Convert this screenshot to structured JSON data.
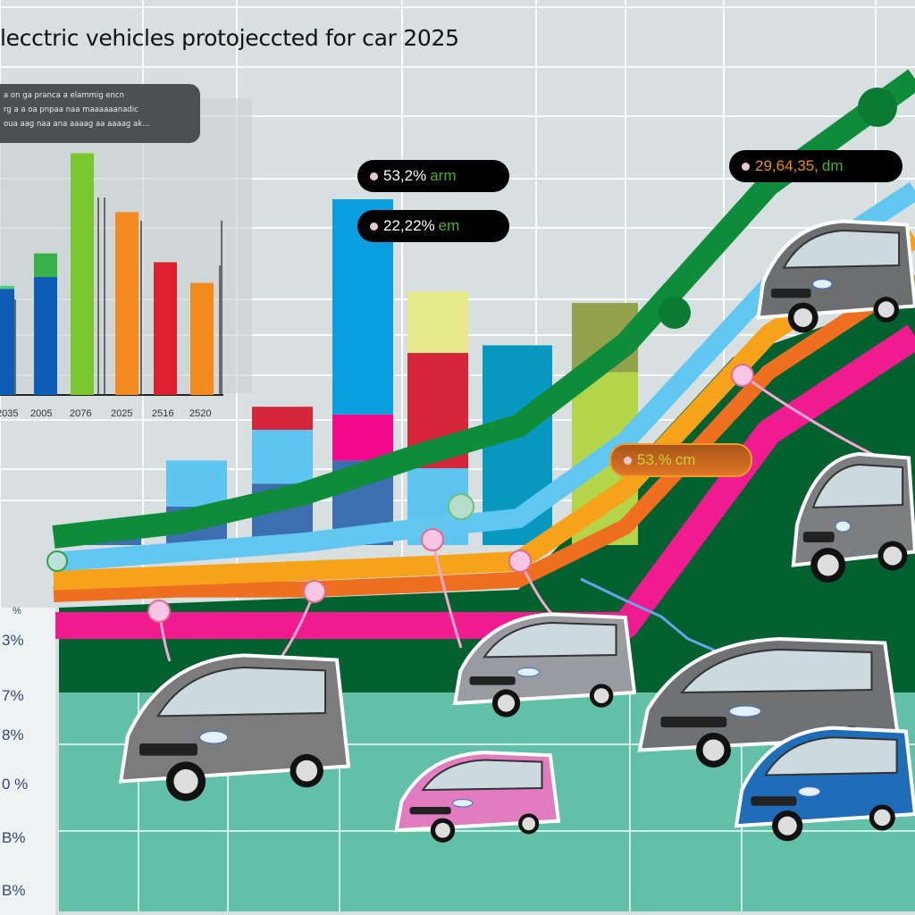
{
  "chart_data": {
    "type": "bar",
    "title": "lecctric vehicles  protojeccted for car  2025",
    "note_lines": [
      "a on ga pranca a elammig encn",
      "rg a a oa pnpaa naa maaaaaanadic",
      "oua aag naa ana aaaag aa aaaag ak..."
    ],
    "inset_chart": {
      "type": "bar",
      "categories": [
        "2035",
        "2005",
        "2076",
        "2025",
        "2516",
        "2520"
      ],
      "series": [
        {
          "name": "base",
          "values": [
            36,
            40,
            82,
            62,
            45,
            38
          ]
        },
        {
          "name": "top",
          "values": [
            1,
            8,
            0,
            0,
            0,
            0
          ]
        }
      ],
      "colors": [
        "#0e5eb6",
        "#0e5eb6",
        "#7ac82e",
        "#f28a1e",
        "#dd1f2e",
        "#f28a1e"
      ],
      "top_colors": [
        "#49d07a",
        "#39b14b",
        "#b5d62a",
        "#f28a1e",
        "#dd1f2e",
        "#f28a1e"
      ],
      "ylim": [
        0,
        100
      ]
    },
    "main_chart": {
      "type": "bar",
      "stacked_series": [
        {
          "name": "dark-blue",
          "color": "#3c6fb0",
          "values": [
            5,
            10,
            16,
            22,
            0,
            0,
            0
          ]
        },
        {
          "name": "light-blue",
          "color": "#5ec5f0",
          "values": [
            0,
            12,
            14,
            0,
            20,
            0,
            0
          ]
        },
        {
          "name": "red",
          "color": "#d5263c",
          "values": [
            0,
            0,
            6,
            0,
            30,
            0,
            0
          ]
        },
        {
          "name": "pink",
          "color": "#f4088c",
          "values": [
            0,
            0,
            0,
            12,
            0,
            0,
            0
          ]
        },
        {
          "name": "yellow",
          "color": "#e6ea8a",
          "values": [
            0,
            0,
            0,
            0,
            16,
            0,
            0
          ]
        },
        {
          "name": "sky",
          "color": "#089ee0",
          "values": [
            0,
            0,
            0,
            56,
            0,
            0,
            0
          ]
        },
        {
          "name": "teal",
          "color": "#0898c0",
          "values": [
            0,
            0,
            0,
            0,
            0,
            52,
            0
          ]
        },
        {
          "name": "lime",
          "color": "#b3d54a",
          "values": [
            0,
            0,
            0,
            0,
            0,
            0,
            45
          ]
        },
        {
          "name": "olive",
          "color": "#93a04c",
          "values": [
            0,
            0,
            0,
            0,
            0,
            0,
            18
          ]
        }
      ],
      "lines": [
        {
          "name": "green",
          "color": "#0f8c3a",
          "values": [
            5,
            8,
            14,
            22,
            28,
            45,
            78,
            100
          ]
        },
        {
          "name": "light-blue",
          "color": "#62c7f0",
          "values": [
            3,
            5,
            7,
            10,
            12,
            28,
            60,
            80
          ]
        },
        {
          "name": "orange",
          "color": "#f7a21b",
          "values": [
            1,
            2,
            3,
            4,
            5,
            20,
            52,
            72
          ]
        },
        {
          "name": "dark-orange",
          "color": "#ee6f1f",
          "values": [
            0,
            1,
            1,
            2,
            3,
            14,
            46,
            66
          ]
        },
        {
          "name": "pink",
          "color": "#f01b8e",
          "values": [
            0,
            0,
            0,
            0,
            0,
            0,
            40,
            60
          ]
        }
      ],
      "y_ticks": [
        "%",
        "3%",
        "7%",
        "8%",
        "0 %",
        "B%",
        "B%"
      ],
      "labels": [
        {
          "value": "53,2%",
          "unit": "arm"
        },
        {
          "value": "22,22%",
          "unit": "em"
        },
        {
          "value": "29,64,35,",
          "unit": "dm"
        },
        {
          "value": "53.%",
          "unit": "cm"
        }
      ]
    },
    "cars": [
      "van-gray",
      "hatch-silver",
      "hatch-pink",
      "mpv-gray",
      "hatch-blue",
      "suv-gray-top",
      "hatch-gray-right"
    ]
  }
}
